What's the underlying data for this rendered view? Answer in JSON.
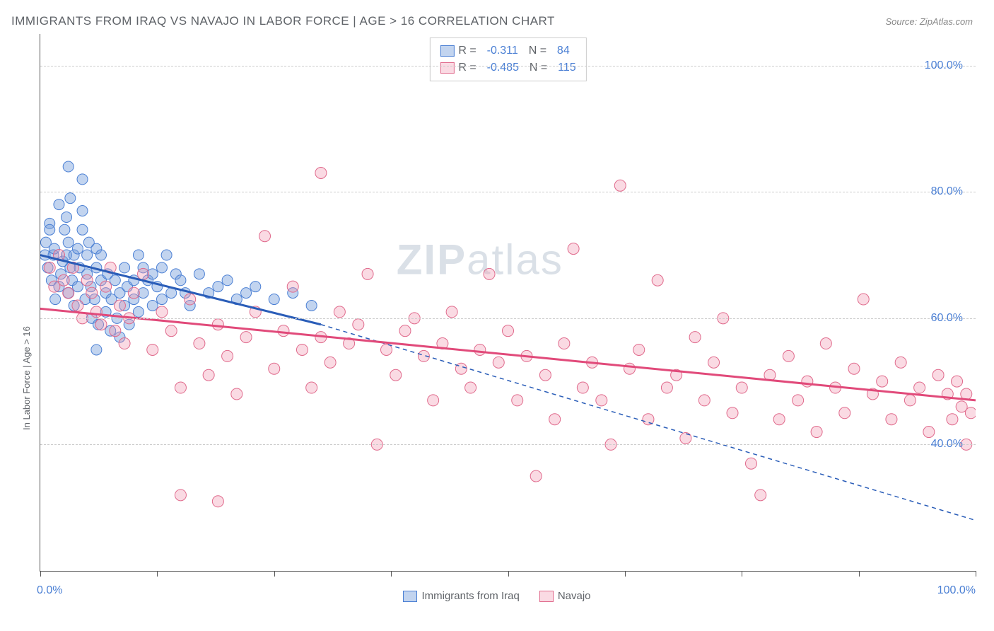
{
  "title": "IMMIGRANTS FROM IRAQ VS NAVAJO IN LABOR FORCE | AGE > 16 CORRELATION CHART",
  "source": "Source: ZipAtlas.com",
  "ylabel": "In Labor Force | Age > 16",
  "watermark_zip": "ZIP",
  "watermark_atlas": "atlas",
  "chart": {
    "type": "scatter",
    "xlim": [
      0,
      100
    ],
    "ylim": [
      20,
      105
    ],
    "x_axis_label_left": "0.0%",
    "x_axis_label_right": "100.0%",
    "y_gridlines": [
      40,
      60,
      80,
      100
    ],
    "y_tick_labels": [
      "40.0%",
      "60.0%",
      "80.0%",
      "100.0%"
    ],
    "x_ticks": [
      0,
      12.5,
      25,
      37.5,
      50,
      62.5,
      75,
      87.5,
      100
    ],
    "background_color": "#ffffff",
    "grid_color": "#cccccc",
    "axis_color": "#555555",
    "series": [
      {
        "name": "Immigrants from Iraq",
        "fill_color": "rgba(120,160,220,0.45)",
        "stroke_color": "#4a7fd4",
        "line_color": "#2a5db8",
        "marker_radius": 7.5,
        "R": "-0.311",
        "N": "84",
        "points": [
          [
            0.5,
            70
          ],
          [
            0.6,
            72
          ],
          [
            0.8,
            68
          ],
          [
            1.0,
            75
          ],
          [
            1.2,
            66
          ],
          [
            1.4,
            70
          ],
          [
            1.0,
            74
          ],
          [
            1.5,
            71
          ],
          [
            1.6,
            63
          ],
          [
            2.0,
            65
          ],
          [
            2.0,
            78
          ],
          [
            2.4,
            69
          ],
          [
            2.2,
            67
          ],
          [
            2.6,
            74
          ],
          [
            2.8,
            70
          ],
          [
            3.0,
            64
          ],
          [
            3.0,
            72
          ],
          [
            3.0,
            84
          ],
          [
            3.4,
            66
          ],
          [
            3.2,
            68
          ],
          [
            3.6,
            70
          ],
          [
            3.6,
            62
          ],
          [
            4.0,
            65
          ],
          [
            4.0,
            71
          ],
          [
            4.2,
            68
          ],
          [
            4.5,
            77
          ],
          [
            4.5,
            74
          ],
          [
            4.8,
            63
          ],
          [
            5.0,
            67
          ],
          [
            5.0,
            70
          ],
          [
            5.2,
            72
          ],
          [
            5.4,
            65
          ],
          [
            5.5,
            60
          ],
          [
            5.8,
            63
          ],
          [
            6.0,
            68
          ],
          [
            6.0,
            71
          ],
          [
            6.2,
            59
          ],
          [
            6.5,
            66
          ],
          [
            6.5,
            70
          ],
          [
            7.0,
            64
          ],
          [
            7.0,
            61
          ],
          [
            7.2,
            67
          ],
          [
            7.5,
            58
          ],
          [
            7.6,
            63
          ],
          [
            8.0,
            66
          ],
          [
            8.2,
            60
          ],
          [
            8.5,
            64
          ],
          [
            8.5,
            57
          ],
          [
            9.0,
            62
          ],
          [
            9.0,
            68
          ],
          [
            9.3,
            65
          ],
          [
            9.5,
            59
          ],
          [
            10.0,
            63
          ],
          [
            10.0,
            66
          ],
          [
            10.5,
            70
          ],
          [
            10.5,
            61
          ],
          [
            11.0,
            68
          ],
          [
            11.0,
            64
          ],
          [
            11.5,
            66
          ],
          [
            12.0,
            62
          ],
          [
            12.0,
            67
          ],
          [
            12.5,
            65
          ],
          [
            13.0,
            68
          ],
          [
            13.0,
            63
          ],
          [
            13.5,
            70
          ],
          [
            14.0,
            64
          ],
          [
            14.5,
            67
          ],
          [
            15.0,
            66
          ],
          [
            15.5,
            64
          ],
          [
            16.0,
            62
          ],
          [
            17.0,
            67
          ],
          [
            18.0,
            64
          ],
          [
            19.0,
            65
          ],
          [
            20.0,
            66
          ],
          [
            21.0,
            63
          ],
          [
            22.0,
            64
          ],
          [
            23.0,
            65
          ],
          [
            25.0,
            63
          ],
          [
            27.0,
            64
          ],
          [
            29.0,
            62
          ],
          [
            4.5,
            82
          ],
          [
            3.2,
            79
          ],
          [
            2.8,
            76
          ],
          [
            6.0,
            55
          ]
        ],
        "trend_solid": {
          "x1": 0,
          "y1": 70,
          "x2": 30,
          "y2": 59
        },
        "trend_dashed": {
          "x1": 30,
          "y1": 59,
          "x2": 100,
          "y2": 28
        }
      },
      {
        "name": "Navajo",
        "fill_color": "rgba(240,150,175,0.35)",
        "stroke_color": "#e06a8c",
        "line_color": "#e14a7a",
        "marker_radius": 8,
        "R": "-0.485",
        "N": "115",
        "points": [
          [
            1.0,
            68
          ],
          [
            1.5,
            65
          ],
          [
            2.0,
            70
          ],
          [
            2.5,
            66
          ],
          [
            3.0,
            64
          ],
          [
            3.5,
            68
          ],
          [
            4.0,
            62
          ],
          [
            4.5,
            60
          ],
          [
            5.0,
            66
          ],
          [
            5.5,
            64
          ],
          [
            6.0,
            61
          ],
          [
            6.5,
            59
          ],
          [
            7.0,
            65
          ],
          [
            7.5,
            68
          ],
          [
            8.0,
            58
          ],
          [
            8.5,
            62
          ],
          [
            9.0,
            56
          ],
          [
            9.5,
            60
          ],
          [
            10.0,
            64
          ],
          [
            11.0,
            67
          ],
          [
            12.0,
            55
          ],
          [
            13.0,
            61
          ],
          [
            14.0,
            58
          ],
          [
            15.0,
            49
          ],
          [
            15.0,
            32
          ],
          [
            16.0,
            63
          ],
          [
            17.0,
            56
          ],
          [
            18.0,
            51
          ],
          [
            19.0,
            31
          ],
          [
            19.0,
            59
          ],
          [
            20.0,
            54
          ],
          [
            21.0,
            48
          ],
          [
            22.0,
            57
          ],
          [
            23.0,
            61
          ],
          [
            24.0,
            73
          ],
          [
            25.0,
            52
          ],
          [
            26.0,
            58
          ],
          [
            27.0,
            65
          ],
          [
            28.0,
            55
          ],
          [
            29.0,
            49
          ],
          [
            30.0,
            83
          ],
          [
            30.0,
            57
          ],
          [
            31.0,
            53
          ],
          [
            32.0,
            61
          ],
          [
            33.0,
            56
          ],
          [
            34.0,
            59
          ],
          [
            35.0,
            67
          ],
          [
            36.0,
            40
          ],
          [
            37.0,
            55
          ],
          [
            38.0,
            51
          ],
          [
            39.0,
            58
          ],
          [
            40.0,
            60
          ],
          [
            41.0,
            54
          ],
          [
            42.0,
            47
          ],
          [
            43.0,
            56
          ],
          [
            44.0,
            61
          ],
          [
            45.0,
            52
          ],
          [
            46.0,
            49
          ],
          [
            47.0,
            55
          ],
          [
            48.0,
            67
          ],
          [
            49.0,
            53
          ],
          [
            50.0,
            58
          ],
          [
            51.0,
            47
          ],
          [
            52.0,
            54
          ],
          [
            53.0,
            35
          ],
          [
            54.0,
            51
          ],
          [
            55.0,
            44
          ],
          [
            56.0,
            56
          ],
          [
            57.0,
            71
          ],
          [
            58.0,
            49
          ],
          [
            59.0,
            53
          ],
          [
            60.0,
            47
          ],
          [
            61.0,
            40
          ],
          [
            62.0,
            81
          ],
          [
            63.0,
            52
          ],
          [
            64.0,
            55
          ],
          [
            65.0,
            44
          ],
          [
            66.0,
            66
          ],
          [
            67.0,
            49
          ],
          [
            68.0,
            51
          ],
          [
            69.0,
            41
          ],
          [
            70.0,
            57
          ],
          [
            71.0,
            47
          ],
          [
            72.0,
            53
          ],
          [
            73.0,
            60
          ],
          [
            74.0,
            45
          ],
          [
            75.0,
            49
          ],
          [
            76.0,
            37
          ],
          [
            77.0,
            32
          ],
          [
            78.0,
            51
          ],
          [
            79.0,
            44
          ],
          [
            80.0,
            54
          ],
          [
            81.0,
            47
          ],
          [
            82.0,
            50
          ],
          [
            83.0,
            42
          ],
          [
            84.0,
            56
          ],
          [
            85.0,
            49
          ],
          [
            86.0,
            45
          ],
          [
            87.0,
            52
          ],
          [
            88.0,
            63
          ],
          [
            89.0,
            48
          ],
          [
            90.0,
            50
          ],
          [
            91.0,
            44
          ],
          [
            92.0,
            53
          ],
          [
            93.0,
            47
          ],
          [
            94.0,
            49
          ],
          [
            95.0,
            42
          ],
          [
            96.0,
            51
          ],
          [
            97.0,
            48
          ],
          [
            97.5,
            44
          ],
          [
            98.0,
            50
          ],
          [
            98.5,
            46
          ],
          [
            99.0,
            40
          ],
          [
            99.0,
            48
          ],
          [
            99.5,
            45
          ]
        ],
        "trend_solid": {
          "x1": 0,
          "y1": 61.5,
          "x2": 100,
          "y2": 47
        }
      }
    ],
    "stat_legend_labels": {
      "R": "R =  ",
      "N": "  N =  "
    },
    "bottom_legend": [
      {
        "label": "Immigrants from Iraq",
        "fill": "rgba(120,160,220,0.45)",
        "stroke": "#4a7fd4"
      },
      {
        "label": "Navajo",
        "fill": "rgba(240,150,175,0.35)",
        "stroke": "#e06a8c"
      }
    ]
  }
}
